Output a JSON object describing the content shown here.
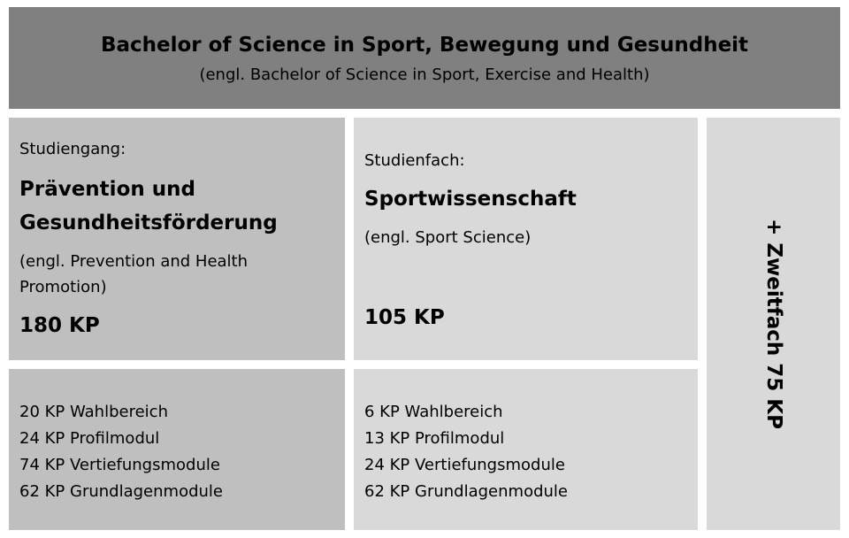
{
  "colors": {
    "header": "#808080",
    "studiengang": "#bfbfbf",
    "studienfach": "#d9d9d9",
    "zweitfach": "#d9d9d9"
  },
  "header": {
    "title": "Bachelor of Science in Sport, Bewegung und Gesundheit",
    "subtitle": "(engl. Bachelor of Science in Sport, Exercise and Health)"
  },
  "studiengang": {
    "label": "Studiengang:",
    "name_line1": "Prävention und",
    "name_line2": "Gesundheitsförderung",
    "english_line1": "(engl. Prevention and Health",
    "english_line2": "Promotion)",
    "credits": "180 KP",
    "modules": [
      "20 KP Wahlbereich",
      "24 KP Profilmodul",
      "74 KP Vertiefungsmodule",
      "62 KP Grundlagenmodule"
    ]
  },
  "studienfach": {
    "label": "Studienfach:",
    "name": "Sportwissenschaft",
    "english": "(engl. Sport Science)",
    "credits": "105 KP",
    "modules": [
      "6 KP Wahlbereich",
      "13 KP Profilmodul",
      "24 KP Vertiefungsmodule",
      "62 KP Grundlagenmodule"
    ]
  },
  "zweitfach": {
    "text": "+ Zweitfach 75 KP"
  }
}
